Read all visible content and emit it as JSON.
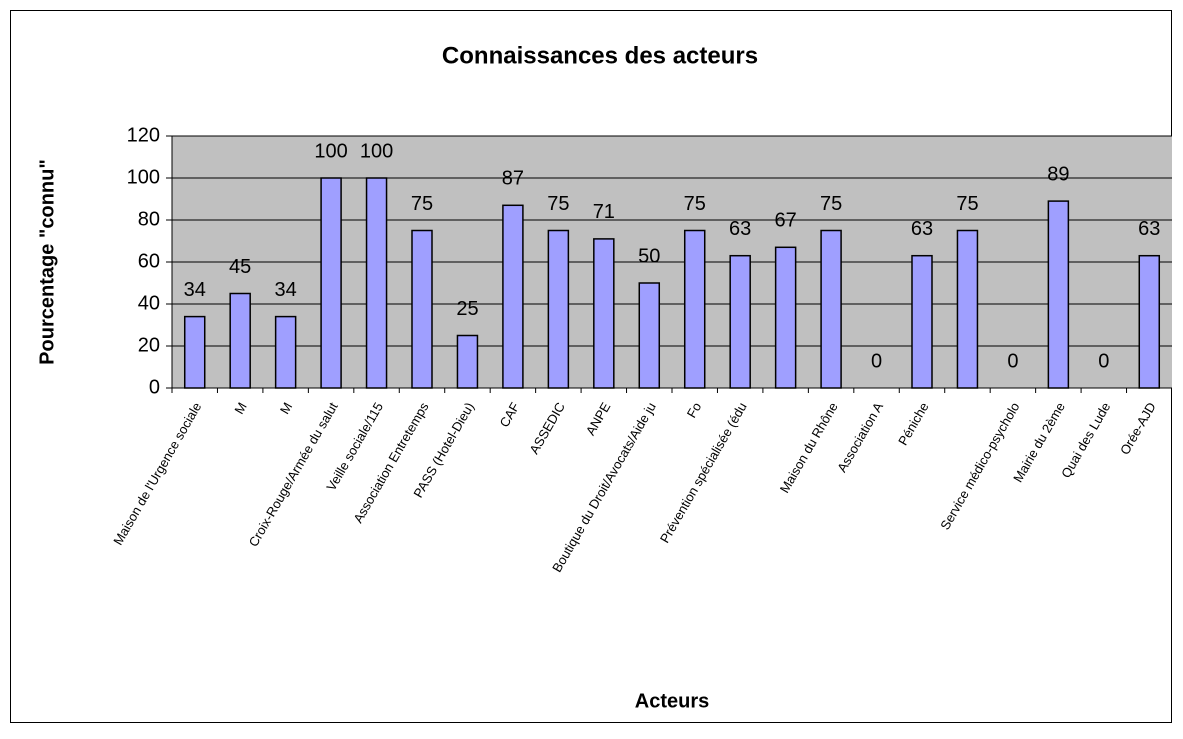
{
  "chart_data": {
    "type": "bar",
    "title": "Connaissances des acteurs",
    "x_label": "Acteurs",
    "y_label": "Pourcentage \"connu\"",
    "categories": [
      "Maison de l'Urgence sociale",
      "M",
      "M",
      "Croix-Rouge/Armée du salut",
      "Veille sociale/115",
      "Association Entretemps",
      "PASS (Hotel-Dieu)",
      "CAF",
      "ASSEDIC",
      "ANPE",
      "Boutique du Droit/Avocats/Aide ju",
      "Fo",
      "Prévention spécialisée (édu",
      null,
      "Maison du Rhône",
      "Association A",
      "Péniche",
      null,
      "Service médico-psycholo",
      "Mairie du 2ème",
      "Quai des Lude",
      "Orée-AJD"
    ],
    "values": [
      34,
      45,
      34,
      100,
      100,
      75,
      25,
      87,
      75,
      71,
      50,
      75,
      63,
      67,
      75,
      0,
      63,
      75,
      0,
      89,
      0,
      63
    ],
    "color": "#9f9fff",
    "ylim": [
      0,
      120
    ],
    "yticks": [
      0,
      20,
      40,
      60,
      80,
      100,
      120
    ],
    "grid": true
  }
}
